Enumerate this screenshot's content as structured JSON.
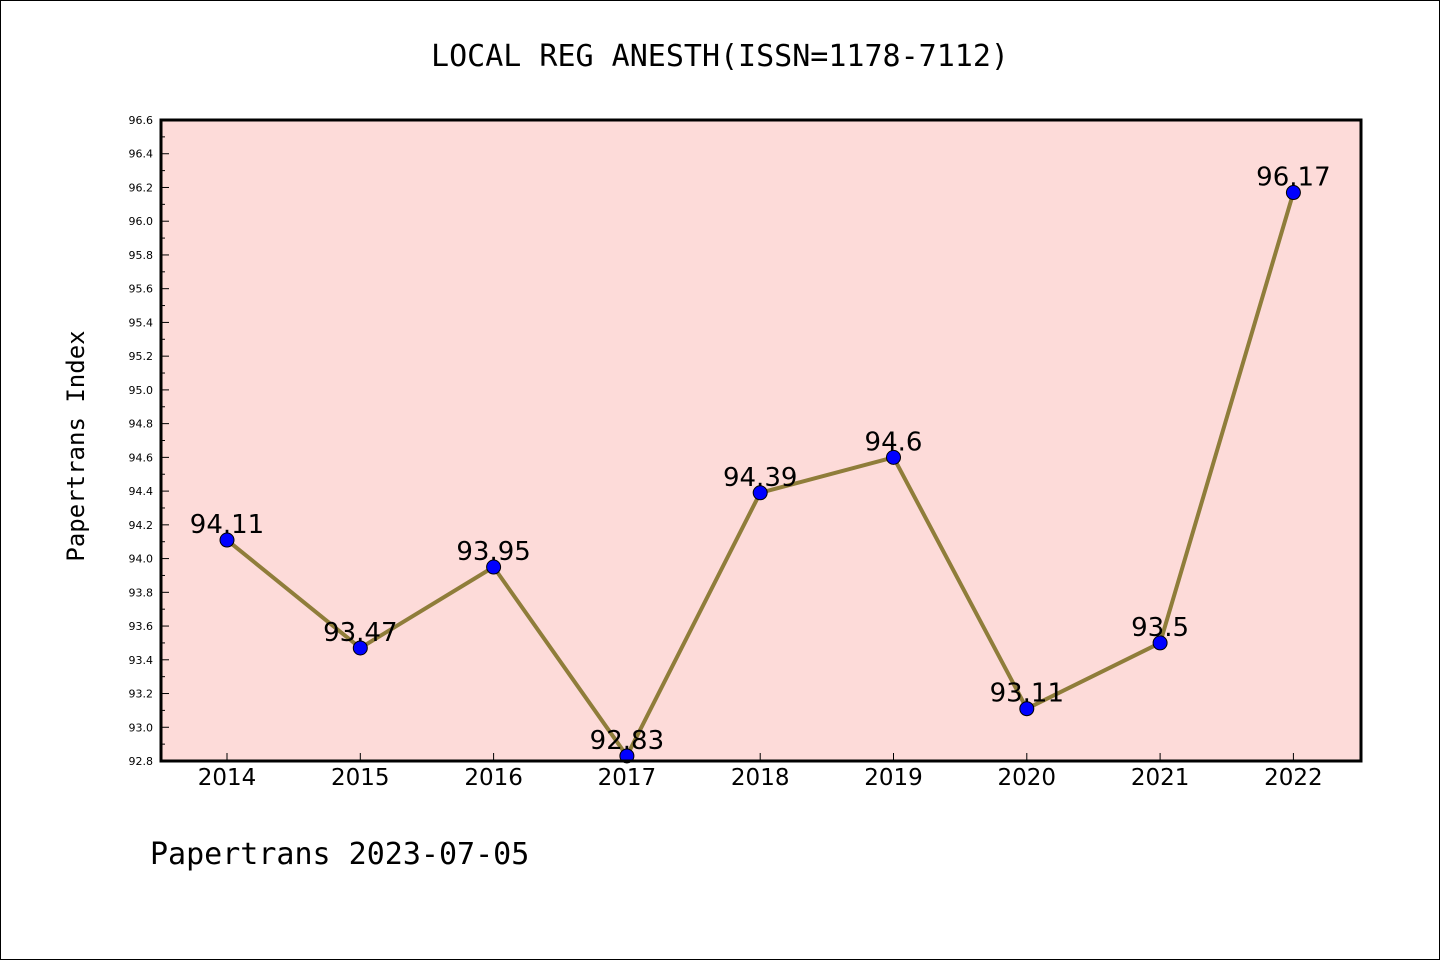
{
  "colors": {
    "plot_background": "#fddbd9",
    "line": "#8f7d3a",
    "marker": "#0000ff",
    "axes": "#000000"
  },
  "footer": "Papertrans 2023-07-05",
  "chart_data": {
    "type": "line",
    "title": "LOCAL REG ANESTH(ISSN=1178-7112)",
    "xlabel": "",
    "ylabel": "Papertrans Index",
    "categories": [
      "2014",
      "2015",
      "2016",
      "2017",
      "2018",
      "2019",
      "2020",
      "2021",
      "2022"
    ],
    "series": [
      {
        "values": [
          94.11,
          93.47,
          93.95,
          92.83,
          94.39,
          94.6,
          93.11,
          93.5,
          96.17
        ],
        "labels": [
          "94.11",
          "93.47",
          "93.95",
          "92.83",
          "94.39",
          "94.6",
          "93.11",
          "93.5",
          "96.17"
        ]
      }
    ],
    "ylim": [
      92.8,
      96.6
    ],
    "yticks": [
      "92.8",
      "93.0",
      "93.2",
      "93.4",
      "93.6",
      "93.8",
      "94.0",
      "94.2",
      "94.4",
      "94.6",
      "94.8",
      "95.0",
      "95.2",
      "95.4",
      "95.6",
      "95.8",
      "96.0",
      "96.2",
      "96.4",
      "96.6"
    ],
    "grid": false,
    "legend": "none"
  }
}
